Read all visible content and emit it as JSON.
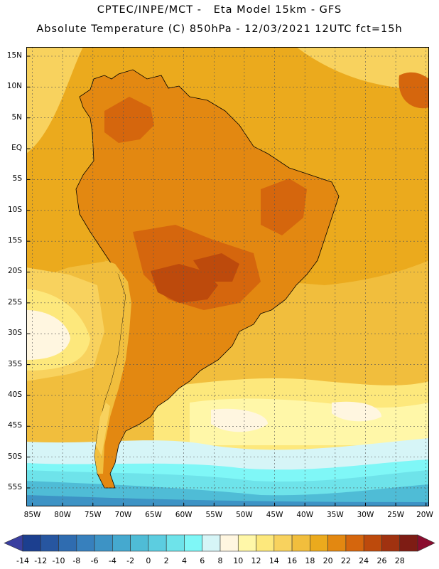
{
  "header": {
    "line1": "CPTEC/INPE/MCT -   Eta Model 15km - GFS",
    "line2": "Absolute Temperature (C) 850hPa - 12/03/2021 12UTC fct=15h"
  },
  "map": {
    "lat_labels": [
      "15N",
      "10N",
      "5N",
      "EQ",
      "5S",
      "10S",
      "15S",
      "20S",
      "25S",
      "30S",
      "35S",
      "40S",
      "45S",
      "50S",
      "55S"
    ],
    "lon_labels": [
      "85W",
      "80W",
      "75W",
      "70W",
      "65W",
      "60W",
      "55W",
      "50W",
      "45W",
      "40W",
      "35W",
      "30W",
      "25W",
      "20W"
    ],
    "lat_range": [
      -58,
      16.5
    ],
    "lon_range": [
      -86,
      -19.5
    ]
  },
  "colorbar": {
    "labels": [
      "-14",
      "-12",
      "-10",
      "-8",
      "-6",
      "-4",
      "-2",
      "0",
      "2",
      "4",
      "6",
      "8",
      "10",
      "12",
      "14",
      "16",
      "18",
      "20",
      "22",
      "24",
      "26",
      "28"
    ],
    "colors": [
      "#1c3f8f",
      "#2756a0",
      "#2f6cb0",
      "#3780bd",
      "#3d93c5",
      "#45a9cf",
      "#4fbcd6",
      "#5ccde0",
      "#6ee3ea",
      "#7ff7f7",
      "#d6f5f7",
      "#fff6e0",
      "#fff7a8",
      "#fde87c",
      "#f8d25e",
      "#f1be3d",
      "#ebaa1d",
      "#e38811",
      "#d5660d",
      "#bd4a0c",
      "#a03210",
      "#7e1c14"
    ],
    "low_arrow": "#3a3fa0",
    "high_arrow": "#8a0c2e"
  },
  "palette": {
    "ocean_tropical": "#ebaa1d",
    "ocean_warm": "#f1be3d",
    "ocean_mid": "#f8d25e",
    "ocean_cool": "#fde87c",
    "ocean_pale": "#fff7a8",
    "cream": "#fff6e0",
    "ice": "#d6f5f7",
    "cyan": "#7ff7f7",
    "sky": "#6ee3ea",
    "blue_mid": "#4fbcd6",
    "blue_deep": "#3d93c5",
    "land": "#e38811",
    "hot": "#d5660d",
    "hotter": "#bd4a0c",
    "andes": "#f1be3d",
    "andes_high": "#f8d25e",
    "border": "#000000"
  }
}
